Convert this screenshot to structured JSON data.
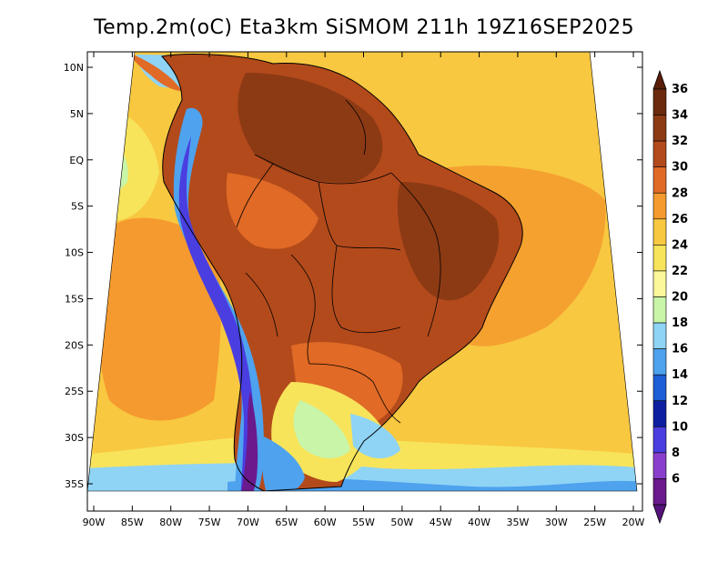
{
  "title": "Temp.2m(oC) Eta3km SiSMOM 211h 19Z16SEP2025",
  "map": {
    "variable": "2 m air temperature",
    "units": "oC",
    "region": "South America",
    "lat_range": [
      -38,
      12
    ],
    "lon_range": [
      -91,
      -20
    ],
    "lat_ticks": [
      {
        "value": 10,
        "label": "10N"
      },
      {
        "value": 5,
        "label": "5N"
      },
      {
        "value": 0,
        "label": "EQ"
      },
      {
        "value": -5,
        "label": "5S"
      },
      {
        "value": -10,
        "label": "10S"
      },
      {
        "value": -15,
        "label": "15S"
      },
      {
        "value": -20,
        "label": "20S"
      },
      {
        "value": -25,
        "label": "25S"
      },
      {
        "value": -30,
        "label": "30S"
      },
      {
        "value": -35,
        "label": "35S"
      }
    ],
    "lon_ticks": [
      {
        "value": -90,
        "label": "90W"
      },
      {
        "value": -85,
        "label": "85W"
      },
      {
        "value": -80,
        "label": "80W"
      },
      {
        "value": -75,
        "label": "75W"
      },
      {
        "value": -70,
        "label": "70W"
      },
      {
        "value": -65,
        "label": "65W"
      },
      {
        "value": -60,
        "label": "60W"
      },
      {
        "value": -55,
        "label": "55W"
      },
      {
        "value": -50,
        "label": "50W"
      },
      {
        "value": -45,
        "label": "45W"
      },
      {
        "value": -40,
        "label": "40W"
      },
      {
        "value": -35,
        "label": "35W"
      },
      {
        "value": -30,
        "label": "30W"
      },
      {
        "value": -25,
        "label": "25W"
      },
      {
        "value": -20,
        "label": "20W"
      }
    ]
  },
  "colorbar": {
    "levels": [
      {
        "label": "36",
        "color": "#6b2a0e"
      },
      {
        "label": "34",
        "color": "#8c3a14"
      },
      {
        "label": "32",
        "color": "#b34a1b"
      },
      {
        "label": "30",
        "color": "#e06a26"
      },
      {
        "label": "28",
        "color": "#f59a2e"
      },
      {
        "label": "26",
        "color": "#f8c840"
      },
      {
        "label": "24",
        "color": "#f7e45b"
      },
      {
        "label": "22",
        "color": "#fbf79a"
      },
      {
        "label": "20",
        "color": "#c8f5a8"
      },
      {
        "label": "18",
        "color": "#8fd4f5"
      },
      {
        "label": "16",
        "color": "#4ea2ee"
      },
      {
        "label": "14",
        "color": "#1c5fd6"
      },
      {
        "label": "12",
        "color": "#0d1fa0"
      },
      {
        "label": "10",
        "color": "#4a3ee0"
      },
      {
        "label": "8",
        "color": "#8a3fcc"
      },
      {
        "label": "6",
        "color": "#6a1a8c"
      }
    ],
    "top_color": "#5a1e08",
    "bottom_color": "#55127a"
  },
  "colors": {
    "ocean_warm": "#f8c840",
    "ocean_mid": "#f59a2e",
    "land_hot": "#b34a1b",
    "land_hottest": "#8c3a14",
    "cool_south": "#8fd4f5"
  }
}
